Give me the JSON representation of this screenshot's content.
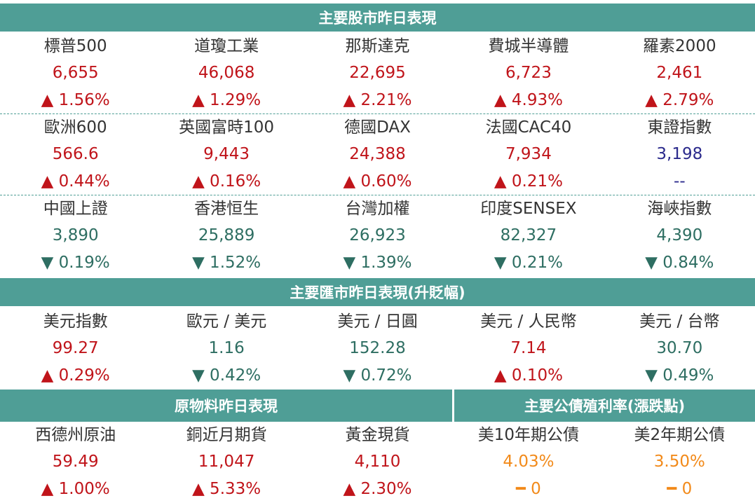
{
  "stocks_header": "主要股市昨日表現",
  "stocks_row1": [
    {
      "name": "標普500",
      "value": "6,655",
      "change": "▲  1.56%",
      "dir": "up"
    },
    {
      "name": "道瓊工業",
      "value": "46,068",
      "change": "▲  1.29%",
      "dir": "up"
    },
    {
      "name": "那斯達克",
      "value": "22,695",
      "change": "▲  2.21%",
      "dir": "up"
    },
    {
      "name": "費城半導體",
      "value": "6,723",
      "change": "▲  4.93%",
      "dir": "up"
    },
    {
      "name": "羅素2000",
      "value": "2,461",
      "change": "▲  2.79%",
      "dir": "up"
    }
  ],
  "stocks_row2": [
    {
      "name": "歐洲600",
      "value": "566.6",
      "change": "▲  0.44%",
      "dir": "up"
    },
    {
      "name": "英國富時100",
      "value": "9,443",
      "change": "▲  0.16%",
      "dir": "up"
    },
    {
      "name": "德國DAX",
      "value": "24,388",
      "change": "▲  0.60%",
      "dir": "up"
    },
    {
      "name": "法國CAC40",
      "value": "7,934",
      "change": "▲  0.21%",
      "dir": "up"
    },
    {
      "name": "東證指數",
      "value": "3,198",
      "change": "--",
      "dir": "flat"
    }
  ],
  "stocks_row3": [
    {
      "name": "中國上證",
      "value": "3,890",
      "change": "▼  0.19%",
      "dir": "down"
    },
    {
      "name": "香港恒生",
      "value": "25,889",
      "change": "▼  1.52%",
      "dir": "down"
    },
    {
      "name": "台灣加權",
      "value": "26,923",
      "change": "▼  1.39%",
      "dir": "down"
    },
    {
      "name": "印度SENSEX",
      "value": "82,327",
      "change": "▼  0.21%",
      "dir": "down"
    },
    {
      "name": "海峽指數",
      "value": "4,390",
      "change": "▼  0.84%",
      "dir": "down"
    }
  ],
  "fx_header": "主要匯市昨日表現(升貶幅)",
  "fx_row": [
    {
      "name": "美元指數",
      "value": "99.27",
      "change": "▲  0.29%",
      "dir": "up"
    },
    {
      "name": "歐元 / 美元",
      "value": "1.16",
      "change": "▼  0.42%",
      "dir": "down"
    },
    {
      "name": "美元 / 日圓",
      "value": "152.28",
      "change": "▼  0.72%",
      "dir": "down"
    },
    {
      "name": "美元 / 人民幣",
      "value": "7.14",
      "change": "▲  0.10%",
      "dir": "up"
    },
    {
      "name": "美元 / 台幣",
      "value": "30.70",
      "change": "▼  0.49%",
      "dir": "down"
    }
  ],
  "commodities_header": "原物料昨日表現",
  "bonds_header": "主要公債殖利率(漲跌點)",
  "bottom_row": [
    {
      "name": "西德州原油",
      "value": "59.49",
      "change": "▲  1.00%",
      "dir": "up"
    },
    {
      "name": "銅近月期貨",
      "value": "11,047",
      "change": "▲  5.33%",
      "dir": "up"
    },
    {
      "name": "黃金現貨",
      "value": "4,110",
      "change": "▲  2.30%",
      "dir": "up"
    },
    {
      "name": "美10年期公債",
      "value": "4.03%",
      "change": "━  0",
      "dir": "orange"
    },
    {
      "name": "美2年期公債",
      "value": "3.50%",
      "change": "━  0",
      "dir": "orange"
    }
  ],
  "colors": {
    "header_bg": "#4f9e96",
    "up": "#c0141a",
    "down": "#2e6e62",
    "bond": "#f28a1a",
    "neutral_value": "#2b2a8c"
  }
}
